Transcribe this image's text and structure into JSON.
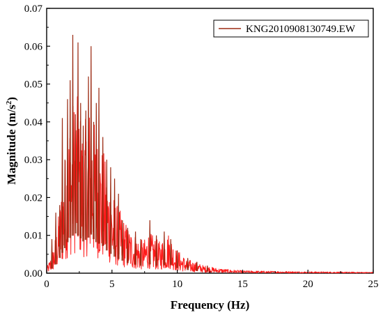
{
  "chart_data": {
    "type": "line",
    "title": "",
    "xlabel": "Frequency (Hz)",
    "ylabel": "Magnitude (m/s²)",
    "ylabel_base": "Magnitude (m/s",
    "ylabel_sup": "2",
    "ylabel_tail": ")",
    "xlim": [
      0,
      25
    ],
    "ylim": [
      0,
      0.07
    ],
    "x_ticks": [
      0,
      5,
      10,
      15,
      20,
      25
    ],
    "x_tick_labels": [
      "0",
      "5",
      "10",
      "15",
      "20",
      "25"
    ],
    "y_ticks": [
      0,
      0.01,
      0.02,
      0.03,
      0.04,
      0.05,
      0.06,
      0.07
    ],
    "y_tick_labels": [
      "0.00",
      "0.01",
      "0.02",
      "0.03",
      "0.04",
      "0.05",
      "0.06",
      "0.07"
    ],
    "grid": false,
    "legend_position": "top-right",
    "series": [
      {
        "name": "KNG2010908130749.EW",
        "color_peaks": "#9b2a12",
        "color_fill": "#ff1a1a",
        "envelope": {
          "x": [
            0,
            0.3,
            0.6,
            0.9,
            1.2,
            1.4,
            1.7,
            2.0,
            2.2,
            2.5,
            2.8,
            3.1,
            3.4,
            3.7,
            4.0,
            4.3,
            4.6,
            5.0,
            5.4,
            5.8,
            6.2,
            6.6,
            7.0,
            7.4,
            7.8,
            8.2,
            8.6,
            9.0,
            9.4,
            9.8,
            10.2,
            10.6,
            11.0,
            11.5,
            12.0,
            13.0,
            14.0,
            15.0,
            17.0,
            20.0,
            25.0
          ],
          "y": [
            0.001,
            0.003,
            0.006,
            0.011,
            0.018,
            0.022,
            0.03,
            0.033,
            0.035,
            0.032,
            0.028,
            0.03,
            0.034,
            0.028,
            0.026,
            0.024,
            0.02,
            0.016,
            0.013,
            0.011,
            0.009,
            0.008,
            0.007,
            0.006,
            0.008,
            0.007,
            0.006,
            0.007,
            0.008,
            0.005,
            0.004,
            0.003,
            0.0025,
            0.002,
            0.0015,
            0.001,
            0.0007,
            0.0005,
            0.0004,
            0.0003,
            0.0002
          ]
        },
        "peaks": [
          {
            "x": 0.4,
            "y": 0.009
          },
          {
            "x": 0.7,
            "y": 0.016
          },
          {
            "x": 1.0,
            "y": 0.018
          },
          {
            "x": 1.2,
            "y": 0.041
          },
          {
            "x": 1.4,
            "y": 0.03
          },
          {
            "x": 1.6,
            "y": 0.046
          },
          {
            "x": 1.8,
            "y": 0.051
          },
          {
            "x": 2.0,
            "y": 0.063
          },
          {
            "x": 2.2,
            "y": 0.042
          },
          {
            "x": 2.4,
            "y": 0.061
          },
          {
            "x": 2.6,
            "y": 0.045
          },
          {
            "x": 2.8,
            "y": 0.039
          },
          {
            "x": 3.0,
            "y": 0.043
          },
          {
            "x": 3.2,
            "y": 0.052
          },
          {
            "x": 3.4,
            "y": 0.06
          },
          {
            "x": 3.6,
            "y": 0.04
          },
          {
            "x": 3.8,
            "y": 0.045
          },
          {
            "x": 4.0,
            "y": 0.049
          },
          {
            "x": 4.3,
            "y": 0.036
          },
          {
            "x": 4.6,
            "y": 0.03
          },
          {
            "x": 4.9,
            "y": 0.028
          },
          {
            "x": 5.2,
            "y": 0.025
          },
          {
            "x": 5.5,
            "y": 0.021
          },
          {
            "x": 5.8,
            "y": 0.014
          },
          {
            "x": 6.2,
            "y": 0.012
          },
          {
            "x": 6.8,
            "y": 0.011
          },
          {
            "x": 7.2,
            "y": 0.009
          },
          {
            "x": 7.9,
            "y": 0.014
          },
          {
            "x": 8.4,
            "y": 0.01
          },
          {
            "x": 9.0,
            "y": 0.011
          },
          {
            "x": 9.5,
            "y": 0.009
          },
          {
            "x": 10.0,
            "y": 0.006
          },
          {
            "x": 10.8,
            "y": 0.004
          },
          {
            "x": 11.5,
            "y": 0.003
          },
          {
            "x": 12.3,
            "y": 0.002
          }
        ]
      }
    ]
  }
}
